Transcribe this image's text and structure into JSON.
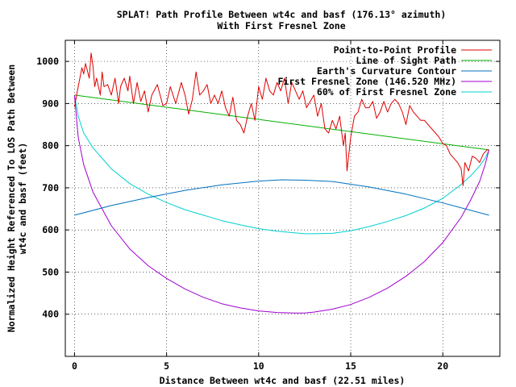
{
  "chart_data": {
    "type": "line",
    "title": "SPLAT! Path Profile Between wt4c and basf (176.13° azimuth)",
    "subtitle": "With First Fresnel Zone",
    "xlabel": "Distance Between wt4c and basf (22.51 miles)",
    "ylabel_lines": [
      "Normalized Height Referenced To LOS Path Between",
      "wt4c and basf (feet)"
    ],
    "xlim": [
      -0.5,
      23.1
    ],
    "ylim": [
      300,
      1050
    ],
    "xticks": [
      0,
      5,
      10,
      15,
      20
    ],
    "yticks": [
      400,
      500,
      600,
      700,
      800,
      900,
      1000
    ],
    "grid": true,
    "legend_position": "top-right",
    "series": [
      {
        "name": "Point-to-Point Profile",
        "color": "#e00000",
        "x": [
          0.0,
          0.2,
          0.4,
          0.5,
          0.6,
          0.8,
          0.9,
          1.0,
          1.1,
          1.2,
          1.4,
          1.5,
          1.6,
          1.8,
          2.0,
          2.2,
          2.4,
          2.5,
          2.7,
          2.9,
          3.0,
          3.2,
          3.4,
          3.6,
          3.8,
          4.0,
          4.2,
          4.5,
          4.8,
          5.0,
          5.2,
          5.5,
          5.8,
          6.0,
          6.2,
          6.4,
          6.6,
          6.8,
          7.0,
          7.2,
          7.4,
          7.6,
          7.8,
          8.0,
          8.2,
          8.4,
          8.6,
          8.8,
          9.0,
          9.2,
          9.4,
          9.6,
          9.8,
          10.0,
          10.2,
          10.4,
          10.6,
          10.8,
          11.0,
          11.2,
          11.4,
          11.6,
          11.8,
          12.0,
          12.2,
          12.4,
          12.6,
          12.8,
          13.0,
          13.2,
          13.4,
          13.6,
          13.8,
          14.0,
          14.2,
          14.4,
          14.6,
          14.7,
          14.8,
          15.0,
          15.2,
          15.4,
          15.6,
          15.8,
          16.0,
          16.2,
          16.4,
          16.6,
          16.8,
          17.0,
          17.2,
          17.4,
          17.6,
          17.8,
          18.0,
          18.2,
          18.4,
          18.6,
          18.8,
          19.0,
          19.2,
          19.4,
          19.6,
          19.8,
          20.0,
          20.2,
          20.4,
          20.6,
          20.8,
          21.0,
          21.1,
          21.2,
          21.4,
          21.6,
          21.8,
          22.0,
          22.2,
          22.4,
          22.51
        ],
        "y": [
          892,
          940,
          985,
          970,
          995,
          960,
          1020,
          990,
          940,
          960,
          920,
          975,
          940,
          945,
          920,
          960,
          900,
          940,
          960,
          930,
          965,
          900,
          950,
          905,
          930,
          880,
          920,
          945,
          895,
          900,
          940,
          900,
          950,
          920,
          875,
          910,
          975,
          920,
          930,
          945,
          900,
          920,
          900,
          930,
          890,
          870,
          915,
          860,
          850,
          830,
          870,
          900,
          860,
          940,
          910,
          960,
          930,
          920,
          950,
          930,
          960,
          900,
          950,
          930,
          910,
          930,
          890,
          905,
          920,
          870,
          900,
          840,
          830,
          860,
          840,
          870,
          800,
          830,
          740,
          820,
          870,
          880,
          910,
          890,
          890,
          905,
          865,
          880,
          905,
          880,
          900,
          910,
          900,
          880,
          850,
          895,
          880,
          870,
          860,
          860,
          850,
          840,
          830,
          820,
          805,
          800,
          780,
          770,
          760,
          745,
          705,
          760,
          740,
          775,
          770,
          760,
          780,
          790,
          790
        ]
      },
      {
        "name": "Line of Sight Path",
        "color": "#00b000",
        "x": [
          0,
          22.51
        ],
        "y": [
          920,
          790
        ]
      },
      {
        "name": "Earth's Curvature Contour",
        "color": "#0070c0",
        "x": [
          0,
          2,
          4,
          6,
          8,
          10,
          11.25,
          12.5,
          14,
          16,
          18,
          20,
          22.51
        ],
        "y": [
          635,
          658,
          677,
          694,
          707,
          716,
          719,
          718,
          715,
          702,
          685,
          664,
          635
        ]
      },
      {
        "name": "First Fresnel Zone (146.520 MHz)",
        "color": "#a000d0",
        "x": [
          0,
          0.2,
          0.5,
          1,
          2,
          3,
          4,
          5,
          6,
          7,
          8,
          9,
          10,
          11,
          12,
          12.5,
          13,
          14,
          15,
          16,
          17,
          18,
          19,
          20,
          21,
          21.5,
          22,
          22.3,
          22.51
        ],
        "y": [
          920,
          820,
          755,
          690,
          610,
          555,
          515,
          485,
          460,
          440,
          425,
          415,
          408,
          404,
          403,
          403,
          405,
          412,
          423,
          440,
          462,
          490,
          525,
          570,
          630,
          670,
          715,
          755,
          790
        ]
      },
      {
        "name": "60% of First Fresnel Zone",
        "color": "#00d0d0",
        "x": [
          0,
          0.2,
          0.5,
          1,
          2,
          3,
          4,
          5,
          6,
          7,
          8,
          9,
          10,
          11,
          12,
          12.5,
          13,
          14,
          15,
          16,
          17,
          18,
          19,
          20,
          21,
          21.5,
          22,
          22.3,
          22.51
        ],
        "y": [
          920,
          870,
          830,
          795,
          745,
          710,
          685,
          665,
          648,
          635,
          622,
          612,
          603,
          597,
          593,
          591,
          591,
          592,
          598,
          608,
          620,
          634,
          652,
          675,
          708,
          728,
          752,
          770,
          790
        ]
      }
    ]
  }
}
